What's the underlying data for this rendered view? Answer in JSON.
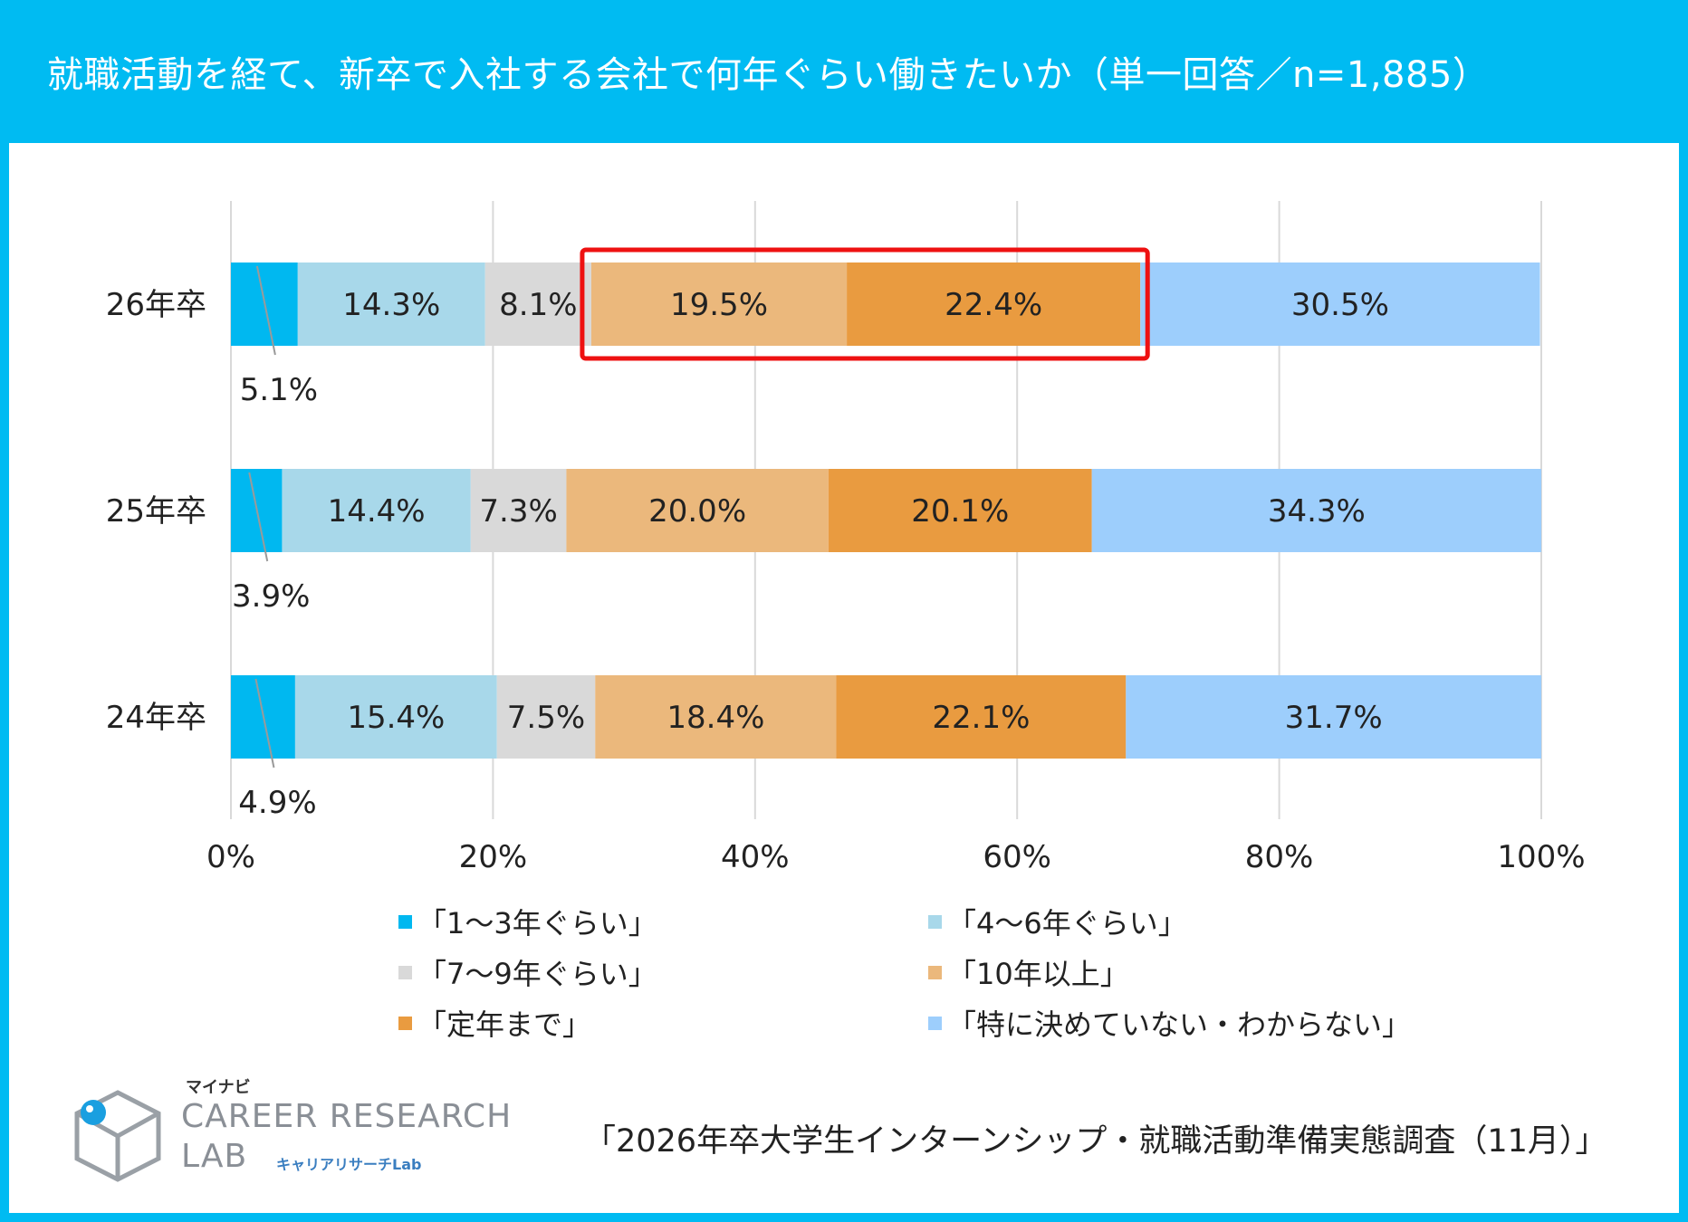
{
  "header": {
    "title": "就職活動を経て、新卒で入社する会社で何年ぐらい働きたいか（単一回答／n=1,885）"
  },
  "colors": {
    "header_bg": "#00bbf2",
    "highlight_border": "#ee1111",
    "gridline": "#d9d9d9"
  },
  "chart_data": {
    "type": "bar",
    "orientation": "horizontal-stacked-100",
    "title": "就職活動を経て、新卒で入社する会社で何年ぐらい働きたいか（単一回答／n=1,885）",
    "categories": [
      "26年卒",
      "25年卒",
      "24年卒"
    ],
    "xlim": [
      0,
      100
    ],
    "x_ticks": [
      0,
      20,
      40,
      60,
      80,
      100
    ],
    "x_tick_labels": [
      "0%",
      "20%",
      "40%",
      "60%",
      "80%",
      "100%"
    ],
    "grid": true,
    "legend_position": "bottom",
    "series": [
      {
        "name": "「1～3年ぐらい」",
        "color": "#00b8f0",
        "values": [
          5.1,
          3.9,
          4.9
        ],
        "labels": [
          "5.1%",
          "3.9%",
          "4.9%"
        ]
      },
      {
        "name": "「4～6年ぐらい」",
        "color": "#a8d8ea",
        "values": [
          14.3,
          14.4,
          15.4
        ],
        "labels": [
          "14.3%",
          "14.4%",
          "15.4%"
        ]
      },
      {
        "name": "「7～9年ぐらい」",
        "color": "#d9d9d9",
        "values": [
          8.1,
          7.3,
          7.5
        ],
        "labels": [
          "8.1%",
          "7.3%",
          "7.5%"
        ]
      },
      {
        "name": "「10年以上」",
        "color": "#ebb87c",
        "values": [
          19.5,
          20.0,
          18.4
        ],
        "labels": [
          "19.5%",
          "20.0%",
          "18.4%"
        ]
      },
      {
        "name": "「定年まで」",
        "color": "#e99b40",
        "values": [
          22.4,
          20.1,
          22.1
        ],
        "labels": [
          "22.4%",
          "20.1%",
          "22.1%"
        ]
      },
      {
        "name": "「特に決めていない・わからない」",
        "color": "#9dcefc",
        "values": [
          30.5,
          34.3,
          31.7
        ],
        "labels": [
          "30.5%",
          "34.3%",
          "31.7%"
        ]
      }
    ],
    "highlight": {
      "category": "26年卒",
      "series": [
        "「10年以上」",
        "「定年まで」"
      ]
    }
  },
  "logo": {
    "brand_small": "マイナビ",
    "line1": "CAREER RESEARCH",
    "line2": "LAB",
    "sub": "キャリアリサーチLab"
  },
  "source": "「2026年卒大学生インターンシップ・就職活動準備実態調査（11月）」"
}
